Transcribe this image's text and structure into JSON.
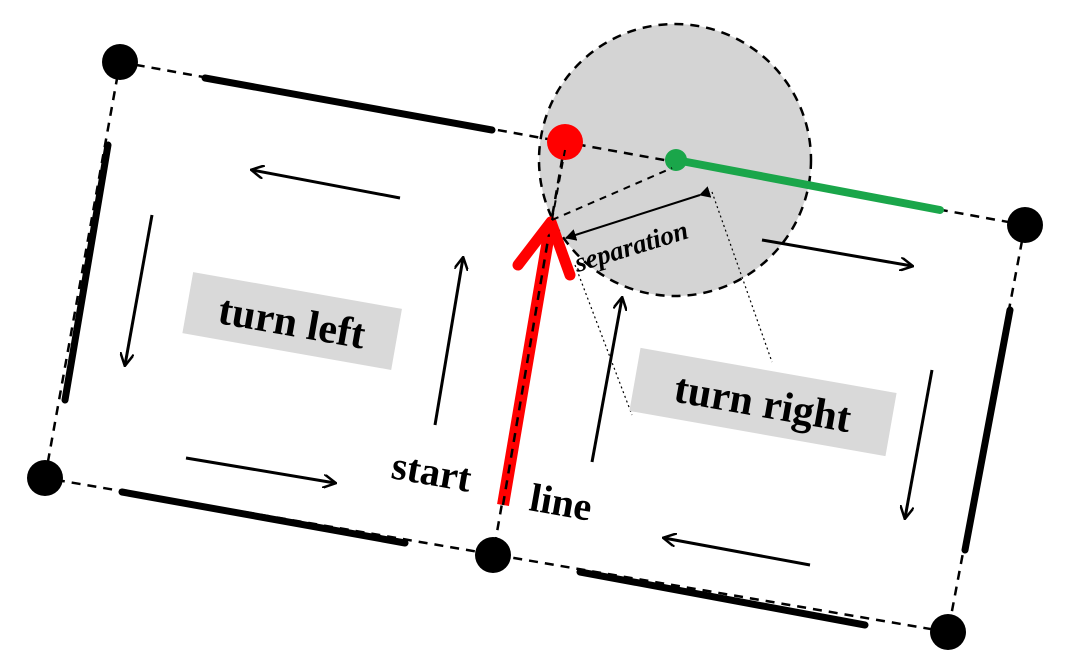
{
  "labels": {
    "turn_left": "turn left",
    "turn_right": "turn right",
    "start": "start",
    "line": "line",
    "separation": "separation"
  },
  "colors": {
    "background": "#ffffff",
    "ink": "#000000",
    "label_box": "#d9d9d9",
    "circle_fill": "#d4d4d4",
    "red": "#ff0000",
    "green": "#1aa64a"
  }
}
